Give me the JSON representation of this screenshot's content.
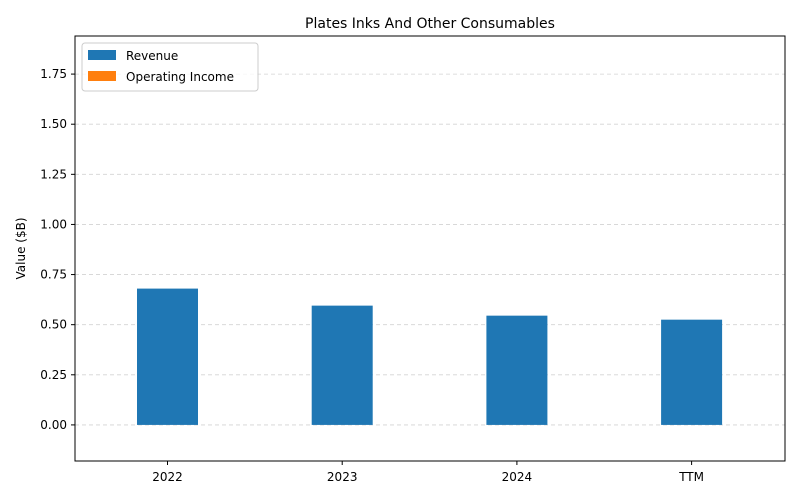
{
  "chart_data": {
    "type": "bar",
    "title": "Plates Inks And Other Consumables",
    "xlabel": "",
    "ylabel": "Value ($B)",
    "categories": [
      "2022",
      "2023",
      "2024",
      "TTM"
    ],
    "series": [
      {
        "name": "Revenue",
        "values": [
          0.68,
          0.595,
          0.545,
          0.525
        ],
        "color": "#1f77b4"
      },
      {
        "name": "Operating Income",
        "values": [
          0,
          0,
          0,
          0
        ],
        "color": "#ff7f0e"
      }
    ],
    "ylim": [
      -0.18,
      1.94
    ],
    "yticks": [
      0.0,
      0.25,
      0.5,
      0.75,
      1.0,
      1.25,
      1.5,
      1.75
    ],
    "ytick_labels": [
      "0.00",
      "0.25",
      "0.50",
      "0.75",
      "1.00",
      "1.25",
      "1.50",
      "1.75"
    ],
    "grid": "y-dashed",
    "legend": "top-left"
  }
}
